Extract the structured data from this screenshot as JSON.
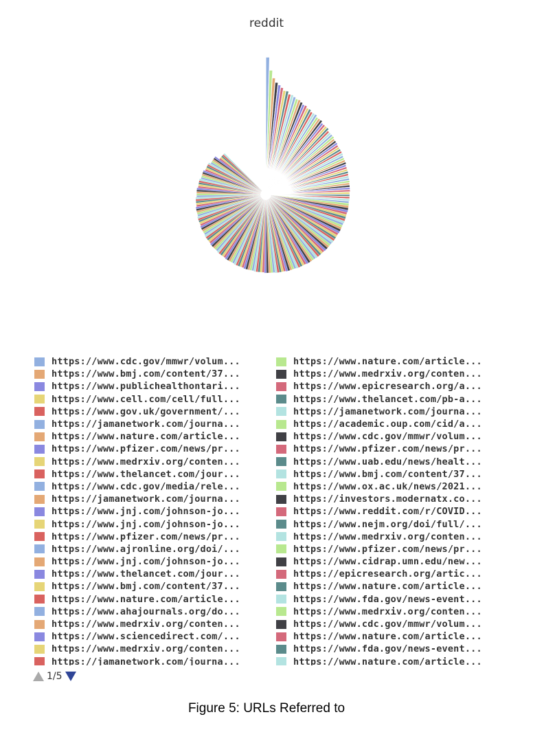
{
  "chart_data": {
    "type": "pie",
    "title": "reddit",
    "subtype": "nightingale-rose (radius by value)",
    "palette": [
      "#92b0e0",
      "#b8e88f",
      "#e4a875",
      "#404045",
      "#8a88e0",
      "#d4697b",
      "#e6d577",
      "#5b8b8b",
      "#d9625f",
      "#b3e3e1"
    ],
    "slice_values": [
      28,
      20,
      16,
      14,
      13,
      12,
      11,
      11,
      10,
      10,
      9.5,
      9,
      9,
      8.5,
      8,
      8,
      7.5,
      7.5,
      7,
      7,
      7,
      6.5,
      6.5,
      6.5,
      6,
      6,
      6,
      6,
      5.5,
      5.5,
      5.5,
      5.5,
      5.2,
      5.2,
      5.2,
      5,
      5,
      5,
      5,
      5,
      4.8,
      4.8,
      4.8,
      4.8,
      4.6,
      4.6,
      4.6,
      4.6,
      4.5,
      4.5,
      4.5,
      4.5,
      4.4,
      4.4,
      4.4,
      4.4,
      4.3,
      4.3,
      4.3,
      4.3,
      4.2,
      4.2,
      4.2,
      4.2,
      4.2,
      4.1,
      4.1,
      4.1,
      4.1,
      4.1,
      4,
      4,
      4,
      4,
      4,
      3.9,
      3.9,
      3.9,
      3.9,
      3.9,
      3.8,
      3.8,
      3.8,
      3.8,
      3.8,
      3.7,
      3.7,
      3.7,
      3.7,
      3.7,
      3.6,
      3.6,
      3.6,
      3.6,
      3.6,
      3.5,
      3.5,
      3.5,
      3.5,
      3.5,
      3.4,
      3.4,
      3.4,
      3.4,
      3.4,
      3.3,
      3.3,
      3.3,
      3.3,
      3.3,
      3.2,
      3.2,
      3.2,
      3.2,
      3.2,
      3.1,
      3.1,
      3.1,
      3.1,
      3.1,
      3,
      3,
      3,
      3,
      3,
      2.9,
      2.9,
      2.9,
      2.9,
      2.9,
      2.8,
      2.8,
      2.8,
      2.8,
      2.8,
      2.7,
      2.7,
      2.7,
      2.7,
      2.7,
      2.6,
      2.6,
      2.6,
      2.6,
      2.6,
      2.5,
      2.5,
      2.5,
      2.5,
      2.5,
      2.4,
      2.4,
      2.4,
      2.4,
      2.4,
      2.3,
      2.3,
      2.3,
      2.3,
      2.3,
      2.2,
      2.2,
      2.2,
      2.2,
      2.2,
      2.1,
      2.1,
      2.1,
      2.1,
      2.1,
      2,
      2,
      2,
      2,
      2,
      1.9,
      1.9,
      1.9,
      1.9,
      1.9,
      1.8,
      1.8,
      1.8,
      1.8,
      1.8,
      1.7,
      1.7,
      1.7,
      1.7,
      1.7,
      1.6,
      1.6,
      1.6,
      1.6,
      1.6,
      1.5,
      1.5,
      1.5,
      1.5,
      1.5
    ],
    "legend": {
      "left": [
        {
          "label": "https://www.cdc.gov/mmwr/volum...",
          "color": "#92b0e0"
        },
        {
          "label": "https://www.bmj.com/content/37...",
          "color": "#e4a875"
        },
        {
          "label": "https://www.publichealthontari...",
          "color": "#8a88e0"
        },
        {
          "label": "https://www.cell.com/cell/full...",
          "color": "#e6d577"
        },
        {
          "label": "https://www.gov.uk/government/...",
          "color": "#d9625f"
        },
        {
          "label": "https://jamanetwork.com/journa...",
          "color": "#92b0e0"
        },
        {
          "label": "https://www.nature.com/article...",
          "color": "#e4a875"
        },
        {
          "label": "https://www.pfizer.com/news/pr...",
          "color": "#8a88e0"
        },
        {
          "label": "https://www.medrxiv.org/conten...",
          "color": "#e6d577"
        },
        {
          "label": "https://www.thelancet.com/jour...",
          "color": "#d9625f"
        },
        {
          "label": "https://www.cdc.gov/media/rele...",
          "color": "#92b0e0"
        },
        {
          "label": "https://jamanetwork.com/journa...",
          "color": "#e4a875"
        },
        {
          "label": "https://www.jnj.com/johnson-jo...",
          "color": "#8a88e0"
        },
        {
          "label": "https://www.jnj.com/johnson-jo...",
          "color": "#e6d577"
        },
        {
          "label": "https://www.pfizer.com/news/pr...",
          "color": "#d9625f"
        },
        {
          "label": "https://www.ajronline.org/doi/...",
          "color": "#92b0e0"
        },
        {
          "label": "https://www.jnj.com/johnson-jo...",
          "color": "#e4a875"
        },
        {
          "label": "https://www.thelancet.com/jour...",
          "color": "#8a88e0"
        },
        {
          "label": "https://www.bmj.com/content/37...",
          "color": "#e6d577"
        },
        {
          "label": "https://www.nature.com/article...",
          "color": "#d9625f"
        },
        {
          "label": "https://www.ahajournals.org/do...",
          "color": "#92b0e0"
        },
        {
          "label": "https://www.medrxiv.org/conten...",
          "color": "#e4a875"
        },
        {
          "label": "https://www.sciencedirect.com/...",
          "color": "#8a88e0"
        },
        {
          "label": "https://www.medrxiv.org/conten...",
          "color": "#e6d577"
        },
        {
          "label": "https://jamanetwork.com/journa...",
          "color": "#d9625f"
        }
      ],
      "right": [
        {
          "label": "https://www.nature.com/article...",
          "color": "#b8e88f"
        },
        {
          "label": "https://www.medrxiv.org/conten...",
          "color": "#404045"
        },
        {
          "label": "https://www.epicresearch.org/a...",
          "color": "#d4697b"
        },
        {
          "label": "https://www.thelancet.com/pb-a...",
          "color": "#5b8b8b"
        },
        {
          "label": "https://jamanetwork.com/journa...",
          "color": "#b3e3e1"
        },
        {
          "label": "https://academic.oup.com/cid/a...",
          "color": "#b8e88f"
        },
        {
          "label": "https://www.cdc.gov/mmwr/volum...",
          "color": "#404045"
        },
        {
          "label": "https://www.pfizer.com/news/pr...",
          "color": "#d4697b"
        },
        {
          "label": "https://www.uab.edu/news/healt...",
          "color": "#5b8b8b"
        },
        {
          "label": "https://www.bmj.com/content/37...",
          "color": "#b3e3e1"
        },
        {
          "label": "https://www.ox.ac.uk/news/2021...",
          "color": "#b8e88f"
        },
        {
          "label": "https://investors.modernatx.co...",
          "color": "#404045"
        },
        {
          "label": "https://www.reddit.com/r/COVID...",
          "color": "#d4697b"
        },
        {
          "label": "https://www.nejm.org/doi/full/...",
          "color": "#5b8b8b"
        },
        {
          "label": "https://www.medrxiv.org/conten...",
          "color": "#b3e3e1"
        },
        {
          "label": "https://www.pfizer.com/news/pr...",
          "color": "#b8e88f"
        },
        {
          "label": "https://www.cidrap.umn.edu/new...",
          "color": "#404045"
        },
        {
          "label": "https://epicresearch.org/artic...",
          "color": "#d4697b"
        },
        {
          "label": "https://www.nature.com/article...",
          "color": "#5b8b8b"
        },
        {
          "label": "https://www.fda.gov/news-event...",
          "color": "#b3e3e1"
        },
        {
          "label": "https://www.medrxiv.org/conten...",
          "color": "#b8e88f"
        },
        {
          "label": "https://www.cdc.gov/mmwr/volum...",
          "color": "#404045"
        },
        {
          "label": "https://www.nature.com/article...",
          "color": "#d4697b"
        },
        {
          "label": "https://www.fda.gov/news-event...",
          "color": "#5b8b8b"
        },
        {
          "label": "https://www.nature.com/article...",
          "color": "#b3e3e1"
        }
      ]
    },
    "legend_placement": "bottom, two columns, paged"
  },
  "pager": {
    "text": "1/5",
    "up_icon": "triangle-up-icon",
    "down_icon": "triangle-down-icon"
  },
  "caption": "Figure 5: URLs Referred to"
}
